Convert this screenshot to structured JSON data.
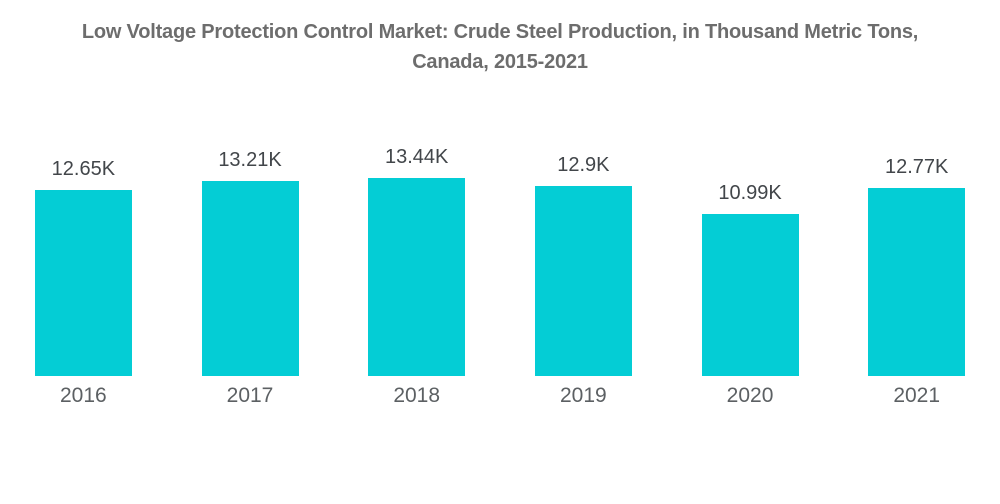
{
  "title_line1": "Low Voltage Protection Control Market: Crude Steel Production, in Thousand Metric Tons,",
  "title_line2": "Canada, 2015-2021",
  "colors": {
    "bar": "#04CDD5",
    "title_text": "#6d6d6d",
    "value_label_text": "#42464a",
    "year_label_text": "#5c6063",
    "background": "#ffffff"
  },
  "chart_data": {
    "type": "bar",
    "title": "Low Voltage Protection Control Market: Crude Steel Production, in Thousand Metric Tons, Canada, 2015-2021",
    "categories": [
      "2016",
      "2017",
      "2018",
      "2019",
      "2020",
      "2021"
    ],
    "values": [
      12.65,
      13.21,
      13.44,
      12.9,
      10.99,
      12.77
    ],
    "value_labels": [
      "12.65K",
      "13.21K",
      "13.44K",
      "12.9K",
      "10.99K",
      "12.77K"
    ],
    "xlabel": "",
    "ylabel": "",
    "ylim": [
      0,
      13.44
    ],
    "grid": false,
    "legend": false,
    "bar_color": "#04CDD5"
  }
}
